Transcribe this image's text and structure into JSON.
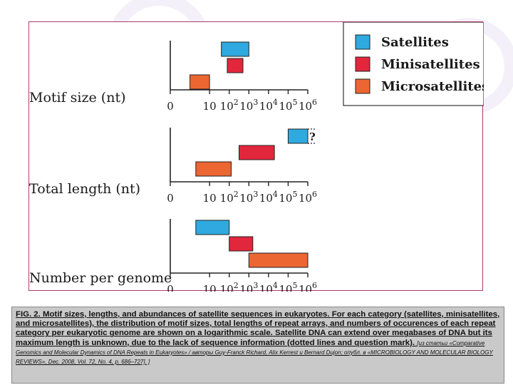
{
  "chart_data": {
    "type": "bar",
    "legend": {
      "placement": "top-right",
      "entries": [
        {
          "name": "Satellites",
          "color": "#2fa9df"
        },
        {
          "name": "Minisatellites",
          "color": "#e2263c"
        },
        {
          "name": "Microsatellites",
          "color": "#ec6632"
        }
      ]
    },
    "x_scale": "log",
    "x_ticks": [
      {
        "exp": -1,
        "base": "0",
        "sup": ""
      },
      {
        "exp": 1,
        "base": "10",
        "sup": ""
      },
      {
        "exp": 2,
        "base": "10",
        "sup": "2"
      },
      {
        "exp": 3,
        "base": "10",
        "sup": "3"
      },
      {
        "exp": 4,
        "base": "10",
        "sup": "4"
      },
      {
        "exp": 5,
        "base": "10",
        "sup": "5"
      },
      {
        "exp": 6,
        "base": "10",
        "sup": "6"
      }
    ],
    "panels": [
      {
        "label": "Motif size (nt)",
        "bars": [
          {
            "series": "Satellites",
            "from_log10": 1.6,
            "to_log10": 3.0
          },
          {
            "series": "Minisatellites",
            "from_log10": 1.9,
            "to_log10": 2.7
          },
          {
            "series": "Microsatellites",
            "from_log10": 0.0,
            "to_log10": 1.0
          }
        ]
      },
      {
        "label": "Total length (nt)",
        "bars": [
          {
            "series": "Satellites",
            "from_log10": 5.0,
            "to_log10": 6.0,
            "unknown_max": true,
            "annotation": "?"
          },
          {
            "series": "Minisatellites",
            "from_log10": 2.5,
            "to_log10": 4.3
          },
          {
            "series": "Microsatellites",
            "from_log10": 0.3,
            "to_log10": 2.1
          }
        ]
      },
      {
        "label": "Number per genome",
        "bars": [
          {
            "series": "Satellites",
            "from_log10": 0.3,
            "to_log10": 2.0
          },
          {
            "series": "Minisatellites",
            "from_log10": 2.0,
            "to_log10": 3.2
          },
          {
            "series": "Microsatellites",
            "from_log10": 3.0,
            "to_log10": 6.0
          }
        ]
      }
    ]
  },
  "caption": {
    "main": "FIG. 2. Motif sizes, lengths, and abundances of satellite sequences in eukaryotes. For each category (satellites, minisatellites, and microsatellites), the distribution of motif sizes, total lengths of repeat arrays, and numbers of occurences of each repeat category per eukaryotic genome are shown on a logarithmic scale. Satellite DNA can extend over megabases of DNA but its maximum length is unknown, due to the lack of sequence information (dotted lines and question mark).",
    "source": "[из статьи «Comparative Genomics and Molecular Dynamics of DNA Repeats in Eukaryotes» / авторы Guy-Franck Richard, Alix Kerrest и Bernard Dujon; опубл. в «MICROBIOLOGY AND MOLECULAR BIOLOGY REVIEWS», Dec. 2008, Vol. 72, No. 4, p. 686–727]. ]"
  }
}
